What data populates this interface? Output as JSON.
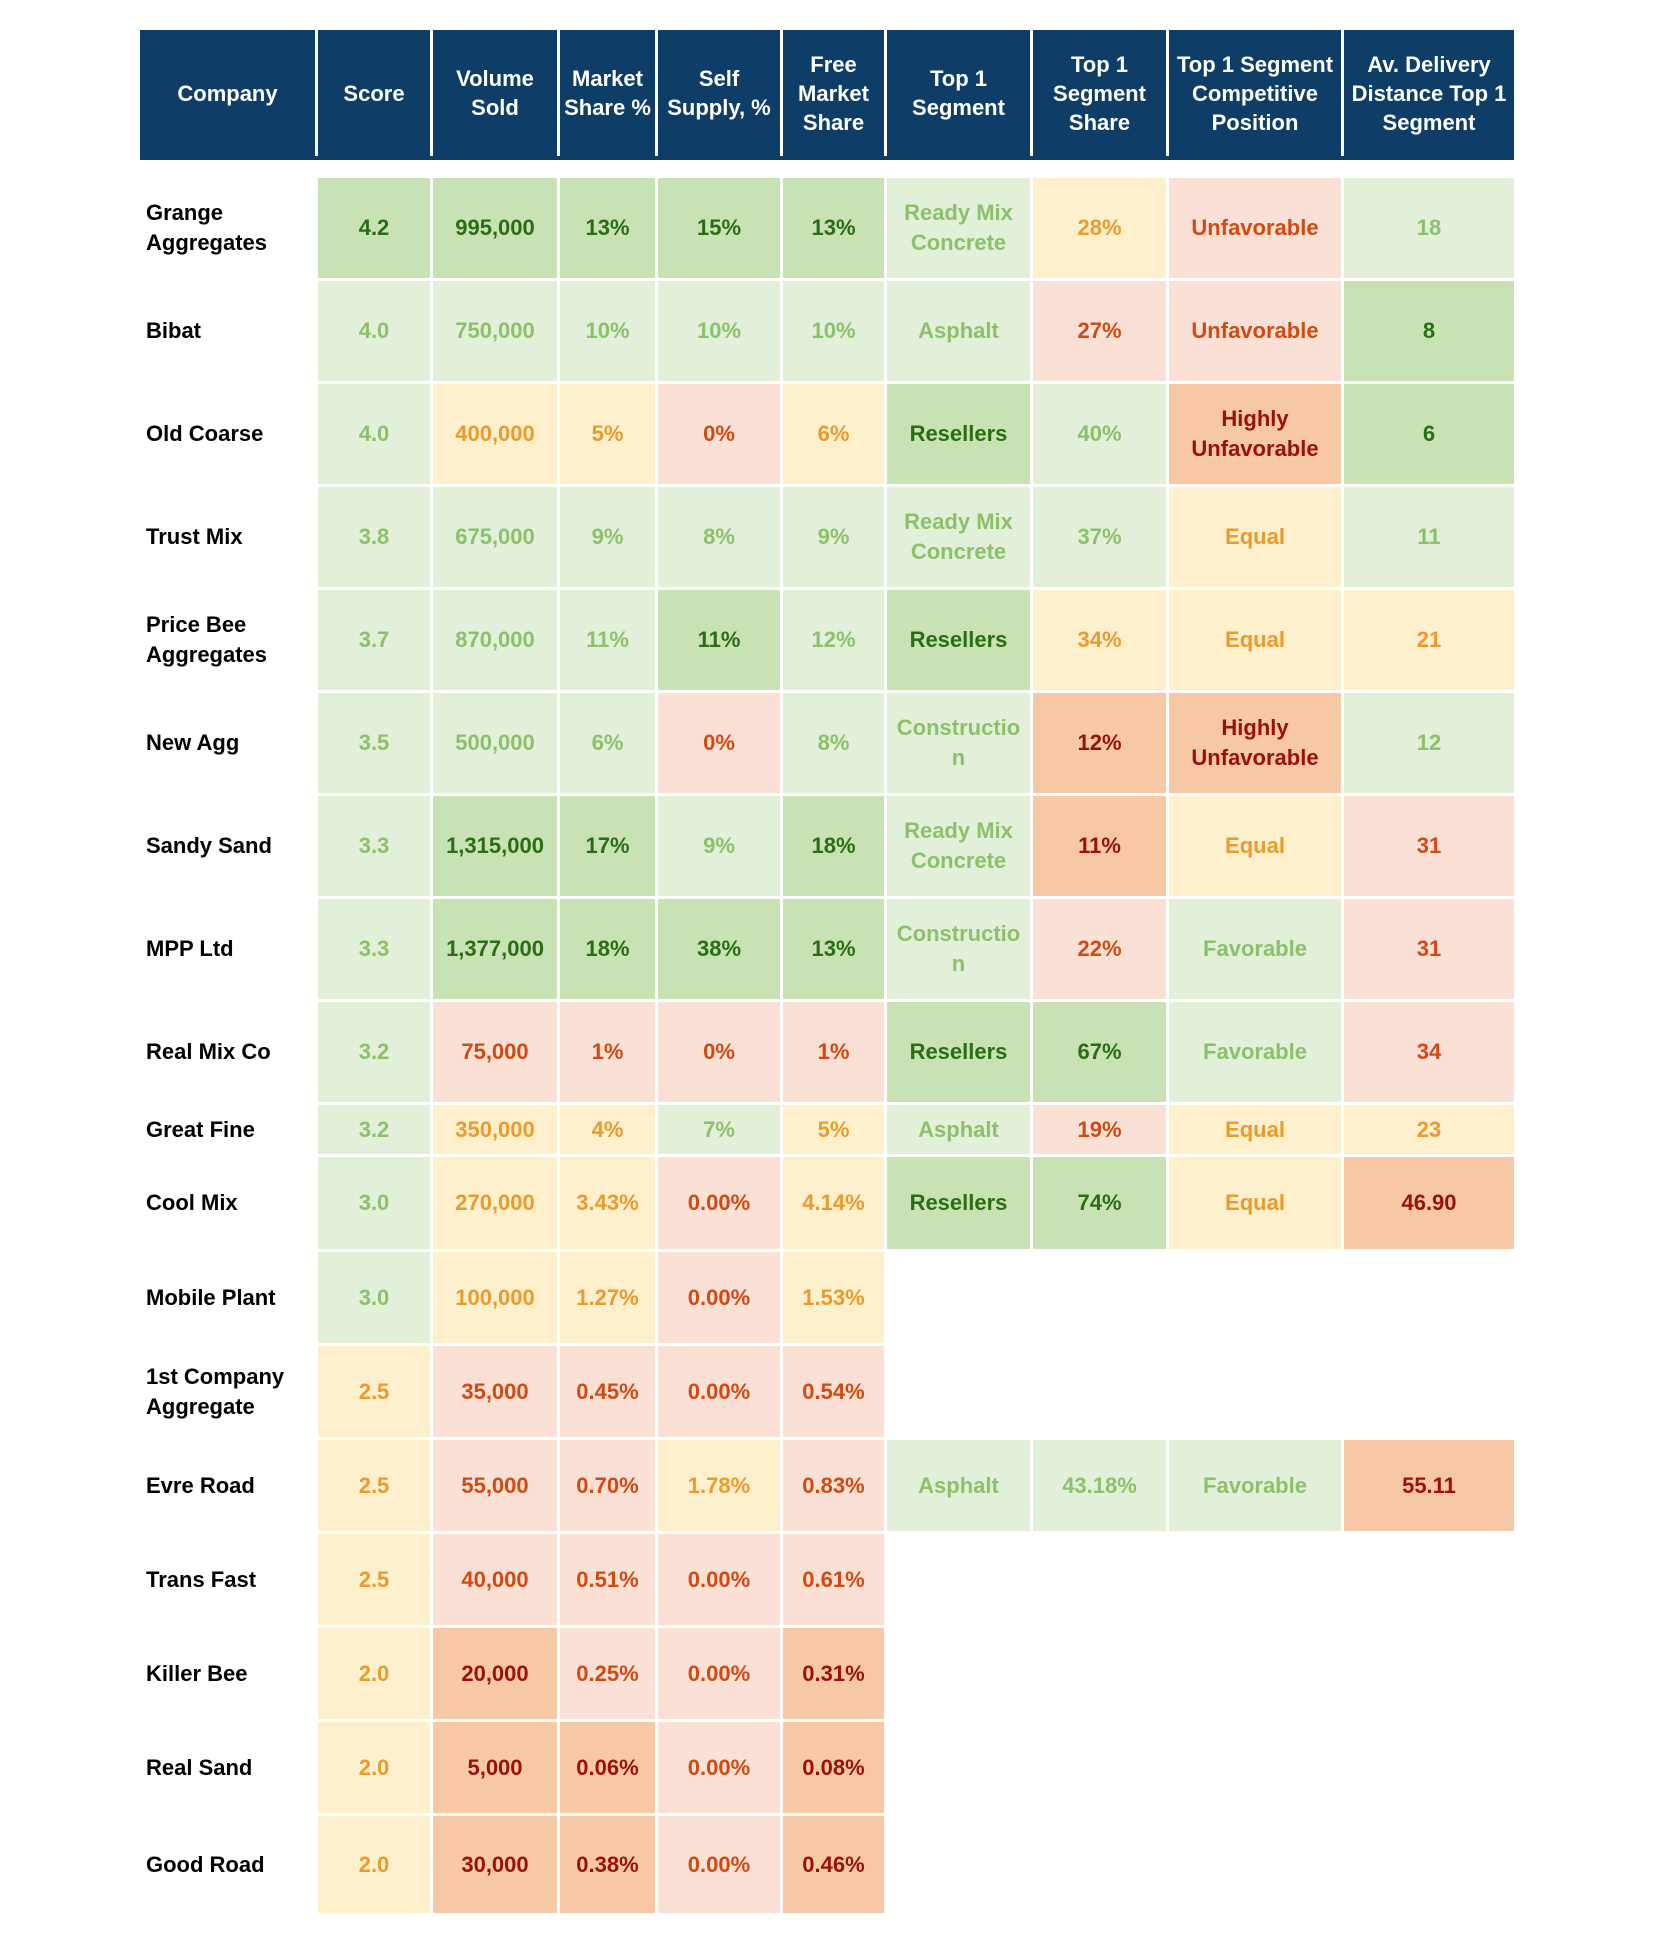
{
  "columns": [
    "Company",
    "Score",
    "Volume\nSold",
    "Market\nShare %",
    "Self\nSupply, %",
    "Free\nMarket\nShare",
    "Top 1\nSegment",
    "Top 1\nSegment\nShare",
    "Top 1 Segment\nCompetitive\nPosition",
    "Av. Delivery\nDistance Top 1\nSegment"
  ],
  "tone_colors": {
    "dark_green": "#c8e2b4",
    "light_green": "#e2f0d9",
    "yellow": "#fef0cc",
    "pink": "#fbe0d5",
    "orange": "#f7c8a6",
    "header": "#0e3e68"
  },
  "rows": [
    {
      "company": "Grange\nAggregates",
      "cells": [
        [
          "4.2",
          "dg"
        ],
        [
          "995,000",
          "dg"
        ],
        [
          "13%",
          "dg"
        ],
        [
          "15%",
          "dg"
        ],
        [
          "13%",
          "dg"
        ],
        [
          "Ready Mix\nConcrete",
          "lg"
        ],
        [
          "28%",
          "y"
        ],
        [
          "Unfavorable",
          "p"
        ],
        [
          "18",
          "lg"
        ]
      ]
    },
    {
      "company": "Bibat",
      "cells": [
        [
          "4.0",
          "lg"
        ],
        [
          "750,000",
          "lg"
        ],
        [
          "10%",
          "lg"
        ],
        [
          "10%",
          "lg"
        ],
        [
          "10%",
          "lg"
        ],
        [
          "Asphalt",
          "lg"
        ],
        [
          "27%",
          "p"
        ],
        [
          "Unfavorable",
          "p"
        ],
        [
          "8",
          "dg"
        ]
      ]
    },
    {
      "company": "Old Coarse",
      "cells": [
        [
          "4.0",
          "lg"
        ],
        [
          "400,000",
          "y"
        ],
        [
          "5%",
          "y"
        ],
        [
          "0%",
          "p"
        ],
        [
          "6%",
          "y"
        ],
        [
          "Resellers",
          "dg"
        ],
        [
          "40%",
          "lg"
        ],
        [
          "Highly\nUnfavorable",
          "o"
        ],
        [
          "6",
          "dg"
        ]
      ]
    },
    {
      "company": "Trust Mix",
      "cells": [
        [
          "3.8",
          "lg"
        ],
        [
          "675,000",
          "lg"
        ],
        [
          "9%",
          "lg"
        ],
        [
          "8%",
          "lg"
        ],
        [
          "9%",
          "lg"
        ],
        [
          "Ready Mix\nConcrete",
          "lg"
        ],
        [
          "37%",
          "lg"
        ],
        [
          "Equal",
          "y"
        ],
        [
          "11",
          "lg"
        ]
      ]
    },
    {
      "company": "Price Bee\nAggregates",
      "cells": [
        [
          "3.7",
          "lg"
        ],
        [
          "870,000",
          "lg"
        ],
        [
          "11%",
          "lg"
        ],
        [
          "11%",
          "dg"
        ],
        [
          "12%",
          "lg"
        ],
        [
          "Resellers",
          "dg"
        ],
        [
          "34%",
          "y"
        ],
        [
          "Equal",
          "y"
        ],
        [
          "21",
          "y"
        ]
      ]
    },
    {
      "company": "New Agg",
      "cells": [
        [
          "3.5",
          "lg"
        ],
        [
          "500,000",
          "lg"
        ],
        [
          "6%",
          "lg"
        ],
        [
          "0%",
          "p"
        ],
        [
          "8%",
          "lg"
        ],
        [
          "Constructio\nn",
          "lg"
        ],
        [
          "12%",
          "o"
        ],
        [
          "Highly\nUnfavorable",
          "o"
        ],
        [
          "12",
          "lg"
        ]
      ]
    },
    {
      "company": "Sandy Sand",
      "cells": [
        [
          "3.3",
          "lg"
        ],
        [
          "1,315,000",
          "dg"
        ],
        [
          "17%",
          "dg"
        ],
        [
          "9%",
          "lg"
        ],
        [
          "18%",
          "dg"
        ],
        [
          "Ready Mix\nConcrete",
          "lg"
        ],
        [
          "11%",
          "o"
        ],
        [
          "Equal",
          "y"
        ],
        [
          "31",
          "p"
        ]
      ]
    },
    {
      "company": "MPP Ltd",
      "cells": [
        [
          "3.3",
          "lg"
        ],
        [
          "1,377,000",
          "dg"
        ],
        [
          "18%",
          "dg"
        ],
        [
          "38%",
          "dg"
        ],
        [
          "13%",
          "dg"
        ],
        [
          "Constructio\nn",
          "lg"
        ],
        [
          "22%",
          "p"
        ],
        [
          "Favorable",
          "lg"
        ],
        [
          "31",
          "p"
        ]
      ]
    },
    {
      "company": "Real Mix Co",
      "cells": [
        [
          "3.2",
          "lg"
        ],
        [
          "75,000",
          "p"
        ],
        [
          "1%",
          "p"
        ],
        [
          "0%",
          "p"
        ],
        [
          "1%",
          "p"
        ],
        [
          "Resellers",
          "dg"
        ],
        [
          "67%",
          "dg"
        ],
        [
          "Favorable",
          "lg"
        ],
        [
          "34",
          "p"
        ]
      ]
    },
    {
      "company": "Great Fine",
      "cells": [
        [
          "3.2",
          "lg"
        ],
        [
          "350,000",
          "y"
        ],
        [
          "4%",
          "y"
        ],
        [
          "7%",
          "lg"
        ],
        [
          "5%",
          "y"
        ],
        [
          "Asphalt",
          "lg"
        ],
        [
          "19%",
          "p"
        ],
        [
          "Equal",
          "y"
        ],
        [
          "23",
          "y"
        ]
      ]
    },
    {
      "company": "Cool Mix",
      "cells": [
        [
          "3.0",
          "lg"
        ],
        [
          "270,000",
          "y"
        ],
        [
          "3.43%",
          "y"
        ],
        [
          "0.00%",
          "p"
        ],
        [
          "4.14%",
          "y"
        ],
        [
          "Resellers",
          "dg"
        ],
        [
          "74%",
          "dg"
        ],
        [
          "Equal",
          "y"
        ],
        [
          "46.90",
          "o"
        ]
      ]
    },
    {
      "company": "Mobile Plant",
      "cells": [
        [
          "3.0",
          "lg"
        ],
        [
          "100,000",
          "y"
        ],
        [
          "1.27%",
          "y"
        ],
        [
          "0.00%",
          "p"
        ],
        [
          "1.53%",
          "y"
        ],
        [
          "",
          ""
        ],
        [
          "",
          ""
        ],
        [
          "",
          ""
        ],
        [
          "",
          ""
        ]
      ]
    },
    {
      "company": "1st Company\nAggregate",
      "cells": [
        [
          "2.5",
          "y"
        ],
        [
          "35,000",
          "p"
        ],
        [
          "0.45%",
          "p"
        ],
        [
          "0.00%",
          "p"
        ],
        [
          "0.54%",
          "p"
        ],
        [
          "",
          ""
        ],
        [
          "",
          ""
        ],
        [
          "",
          ""
        ],
        [
          "",
          ""
        ]
      ]
    },
    {
      "company": "Evre Road",
      "cells": [
        [
          "2.5",
          "y"
        ],
        [
          "55,000",
          "p"
        ],
        [
          "0.70%",
          "p"
        ],
        [
          "1.78%",
          "y"
        ],
        [
          "0.83%",
          "p"
        ],
        [
          "Asphalt",
          "lg"
        ],
        [
          "43.18%",
          "lg"
        ],
        [
          "Favorable",
          "lg"
        ],
        [
          "55.11",
          "o"
        ]
      ]
    },
    {
      "company": "Trans Fast",
      "cells": [
        [
          "2.5",
          "y"
        ],
        [
          "40,000",
          "p"
        ],
        [
          "0.51%",
          "p"
        ],
        [
          "0.00%",
          "p"
        ],
        [
          "0.61%",
          "p"
        ],
        [
          "",
          ""
        ],
        [
          "",
          ""
        ],
        [
          "",
          ""
        ],
        [
          "",
          ""
        ]
      ]
    },
    {
      "company": "Killer Bee",
      "cells": [
        [
          "2.0",
          "y"
        ],
        [
          "20,000",
          "o"
        ],
        [
          "0.25%",
          "p"
        ],
        [
          "0.00%",
          "p"
        ],
        [
          "0.31%",
          "o"
        ],
        [
          "",
          ""
        ],
        [
          "",
          ""
        ],
        [
          "",
          ""
        ],
        [
          "",
          ""
        ]
      ]
    },
    {
      "company": "Real Sand",
      "cells": [
        [
          "2.0",
          "y"
        ],
        [
          "5,000",
          "o"
        ],
        [
          "0.06%",
          "o"
        ],
        [
          "0.00%",
          "p"
        ],
        [
          "0.08%",
          "o"
        ],
        [
          "",
          ""
        ],
        [
          "",
          ""
        ],
        [
          "",
          ""
        ],
        [
          "",
          ""
        ]
      ]
    },
    {
      "company": "Good Road",
      "cells": [
        [
          "2.0",
          "y"
        ],
        [
          "30,000",
          "o"
        ],
        [
          "0.38%",
          "o"
        ],
        [
          "0.00%",
          "p"
        ],
        [
          "0.46%",
          "o"
        ],
        [
          "",
          ""
        ],
        [
          "",
          ""
        ],
        [
          "",
          ""
        ],
        [
          "",
          ""
        ]
      ]
    }
  ]
}
